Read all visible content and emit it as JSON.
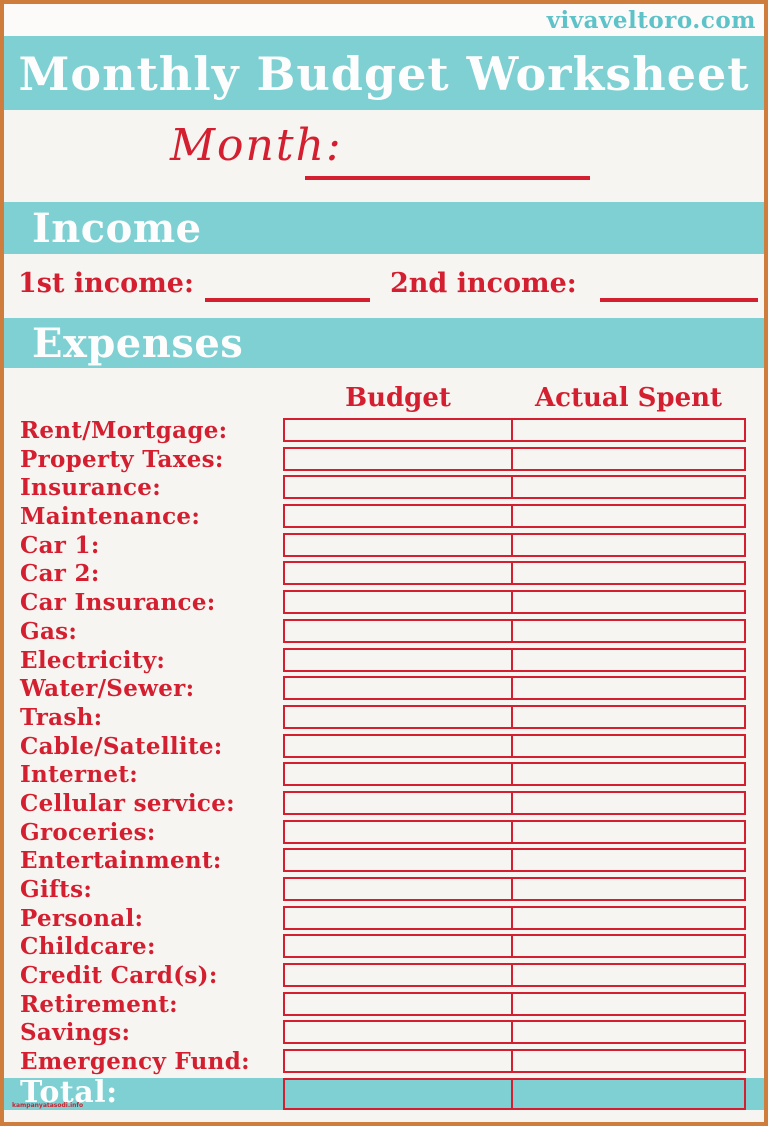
{
  "site_watermark": "vivaveltoro.com",
  "title": "Monthly Budget Worksheet",
  "month_label": "Month:",
  "sections": {
    "income": "Income",
    "expenses": "Expenses"
  },
  "income": {
    "first_label": "1st income:",
    "second_label": "2nd income:"
  },
  "table": {
    "columns": [
      "Budget",
      "Actual Spent"
    ],
    "rows": [
      "Rent/Mortgage:",
      "Property Taxes:",
      "Insurance:",
      "Maintenance:",
      "Car 1:",
      "Car 2:",
      "Car Insurance:",
      "Gas:",
      "Electricity:",
      "Water/Sewer:",
      "Trash:",
      "Cable/Satellite:",
      "Internet:",
      "Cellular service:",
      "Groceries:",
      "Entertainment:",
      "Gifts:",
      "Personal:",
      "Childcare:",
      "Credit Card(s):",
      "Retirement:",
      "Savings:",
      "Emergency Fund:"
    ],
    "total_label": "Total:"
  },
  "footer_watermark": "kampanyatasodi.info",
  "colors": {
    "teal": "#7ed0d3",
    "red": "#d31f2f",
    "border_orange": "#cf7d3c",
    "background": "#f6f5f2",
    "watermark_teal": "#5ec3c9"
  }
}
